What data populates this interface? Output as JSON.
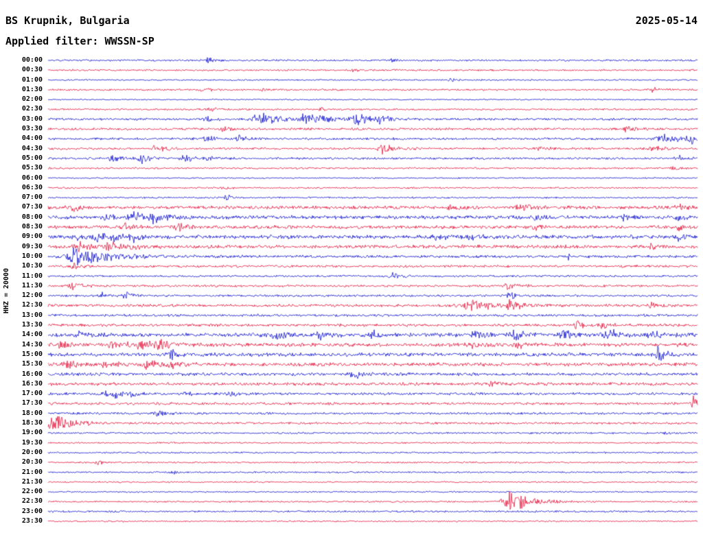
{
  "header": {
    "station": "BS Krupnik, Bulgaria",
    "date": "2025-05-14",
    "filter_label": "Applied filter: WWSSN-SP"
  },
  "axis": {
    "left_label": "HHZ = 20000"
  },
  "colors": {
    "blue": "#0e10cf",
    "red": "#e41239",
    "background": "#ffffff",
    "text": "#000000"
  },
  "chart_data": {
    "type": "line",
    "subtype": "seismogram-helicorder",
    "title": "BS Krupnik, Bulgaria",
    "date": "2025-05-14",
    "filter": "WWSSN-SP",
    "channel_scale_label": "HHZ = 20000",
    "minutes_per_row": 30,
    "start_time": "00:00",
    "end_time": "23:30",
    "legend": "none",
    "grid": "off",
    "events_format": "[position_fraction_along_row, peak_amplitude_px, decay_width_px]",
    "rows": [
      {
        "t": "00:00",
        "c": "blue",
        "n": 1.2,
        "e": [
          [
            0.246,
            6,
            6
          ],
          [
            0.53,
            2.5,
            8
          ]
        ]
      },
      {
        "t": "00:30",
        "c": "red",
        "n": 1.2,
        "e": [
          [
            0.47,
            2.5,
            8
          ]
        ]
      },
      {
        "t": "01:00",
        "c": "blue",
        "n": 1.0,
        "e": [
          [
            0.62,
            2,
            8
          ]
        ]
      },
      {
        "t": "01:30",
        "c": "red",
        "n": 1.2,
        "e": [
          [
            0.24,
            3,
            8
          ],
          [
            0.33,
            2.5,
            8
          ],
          [
            0.93,
            3.5,
            10
          ]
        ]
      },
      {
        "t": "02:00",
        "c": "blue",
        "n": 0.9,
        "e": []
      },
      {
        "t": "02:30",
        "c": "red",
        "n": 1.2,
        "e": [
          [
            0.25,
            3,
            10
          ],
          [
            0.42,
            2.5,
            8
          ]
        ]
      },
      {
        "t": "03:00",
        "c": "blue",
        "n": 1.5,
        "e": [
          [
            0.245,
            4,
            8
          ],
          [
            0.33,
            8,
            28
          ],
          [
            0.4,
            7,
            26
          ],
          [
            0.47,
            8,
            18
          ],
          [
            0.51,
            6,
            12
          ]
        ]
      },
      {
        "t": "03:30",
        "c": "red",
        "n": 1.6,
        "e": [
          [
            0.27,
            3,
            10
          ],
          [
            0.89,
            4,
            10
          ]
        ]
      },
      {
        "t": "04:00",
        "c": "blue",
        "n": 1.5,
        "e": [
          [
            0.245,
            4,
            10
          ],
          [
            0.295,
            5,
            10
          ],
          [
            0.95,
            5,
            24
          ],
          [
            0.99,
            5,
            12
          ]
        ]
      },
      {
        "t": "04:30",
        "c": "red",
        "n": 1.5,
        "e": [
          [
            0.165,
            4,
            14
          ],
          [
            0.515,
            7,
            14
          ],
          [
            0.76,
            3,
            10
          ],
          [
            0.93,
            4,
            12
          ]
        ]
      },
      {
        "t": "05:00",
        "c": "blue",
        "n": 1.5,
        "e": [
          [
            0.1,
            5,
            12
          ],
          [
            0.145,
            6,
            10
          ],
          [
            0.21,
            5,
            10
          ],
          [
            0.245,
            4,
            10
          ],
          [
            0.97,
            4,
            10
          ]
        ]
      },
      {
        "t": "05:30",
        "c": "red",
        "n": 1.2,
        "e": [
          [
            0.965,
            4,
            8
          ]
        ]
      },
      {
        "t": "06:00",
        "c": "blue",
        "n": 0.9,
        "e": []
      },
      {
        "t": "06:30",
        "c": "red",
        "n": 1.1,
        "e": [
          [
            0.27,
            3,
            8
          ]
        ]
      },
      {
        "t": "07:00",
        "c": "blue",
        "n": 1.1,
        "e": [
          [
            0.275,
            6,
            5
          ]
        ]
      },
      {
        "t": "07:30",
        "c": "red",
        "n": 2.2,
        "e": [
          [
            0.04,
            4,
            10
          ],
          [
            0.62,
            4,
            12
          ],
          [
            0.725,
            6,
            10
          ],
          [
            0.97,
            4,
            10
          ]
        ]
      },
      {
        "t": "08:00",
        "c": "blue",
        "n": 2.4,
        "e": [
          [
            0.09,
            5,
            10
          ],
          [
            0.13,
            7,
            12
          ],
          [
            0.165,
            8,
            14
          ],
          [
            0.75,
            4,
            10
          ],
          [
            0.89,
            5,
            10
          ],
          [
            0.97,
            4,
            8
          ]
        ]
      },
      {
        "t": "08:30",
        "c": "red",
        "n": 2.2,
        "e": [
          [
            0.12,
            5,
            12
          ],
          [
            0.2,
            5,
            12
          ],
          [
            0.75,
            4,
            10
          ],
          [
            0.97,
            4,
            8
          ]
        ]
      },
      {
        "t": "09:00",
        "c": "blue",
        "n": 2.4,
        "e": [
          [
            0.04,
            5,
            10
          ],
          [
            0.075,
            7,
            12
          ],
          [
            0.1,
            8,
            12
          ],
          [
            0.13,
            6,
            10
          ],
          [
            0.6,
            4,
            10
          ],
          [
            0.65,
            5,
            10
          ],
          [
            0.97,
            4,
            8
          ]
        ]
      },
      {
        "t": "09:30",
        "c": "red",
        "n": 2.3,
        "e": [
          [
            0.045,
            9,
            10
          ],
          [
            0.095,
            6,
            10
          ],
          [
            0.13,
            5,
            10
          ],
          [
            0.93,
            4,
            8
          ]
        ]
      },
      {
        "t": "10:00",
        "c": "blue",
        "n": 1.8,
        "e": [
          [
            0.048,
            13,
            40
          ],
          [
            0.8,
            6,
            6
          ]
        ]
      },
      {
        "t": "10:30",
        "c": "red",
        "n": 1.6,
        "e": [
          [
            0.04,
            3,
            10
          ]
        ]
      },
      {
        "t": "11:00",
        "c": "blue",
        "n": 1.4,
        "e": [
          [
            0.53,
            5,
            10
          ]
        ]
      },
      {
        "t": "11:30",
        "c": "red",
        "n": 1.5,
        "e": [
          [
            0.035,
            5,
            12
          ],
          [
            0.71,
            5,
            12
          ]
        ]
      },
      {
        "t": "12:00",
        "c": "blue",
        "n": 1.4,
        "e": [
          [
            0.085,
            4,
            10
          ],
          [
            0.12,
            4,
            12
          ],
          [
            0.71,
            5,
            10
          ]
        ]
      },
      {
        "t": "12:30",
        "c": "red",
        "n": 1.8,
        "e": [
          [
            0.655,
            7,
            26
          ],
          [
            0.71,
            6,
            14
          ],
          [
            0.93,
            3,
            10
          ]
        ]
      },
      {
        "t": "13:00",
        "c": "blue",
        "n": 1.6,
        "e": []
      },
      {
        "t": "13:30",
        "c": "red",
        "n": 1.8,
        "e": [
          [
            0.815,
            11,
            6
          ],
          [
            0.855,
            5,
            10
          ]
        ]
      },
      {
        "t": "14:00",
        "c": "blue",
        "n": 2.6,
        "e": [
          [
            0.05,
            4,
            10
          ],
          [
            0.35,
            6,
            16
          ],
          [
            0.42,
            5,
            12
          ],
          [
            0.5,
            5,
            10
          ],
          [
            0.66,
            6,
            12
          ],
          [
            0.72,
            7,
            12
          ],
          [
            0.795,
            8,
            14
          ],
          [
            0.865,
            7,
            14
          ],
          [
            0.93,
            5,
            12
          ]
        ]
      },
      {
        "t": "14:30",
        "c": "red",
        "n": 2.4,
        "e": [
          [
            0.02,
            5,
            10
          ],
          [
            0.1,
            7,
            14
          ],
          [
            0.14,
            6,
            12
          ],
          [
            0.17,
            7,
            14
          ],
          [
            0.65,
            4,
            10
          ],
          [
            0.72,
            5,
            10
          ]
        ]
      },
      {
        "t": "15:00",
        "c": "blue",
        "n": 2.4,
        "e": [
          [
            0.19,
            9,
            6
          ],
          [
            0.94,
            15,
            7
          ]
        ]
      },
      {
        "t": "15:30",
        "c": "red",
        "n": 2.4,
        "e": [
          [
            0.03,
            5,
            10
          ],
          [
            0.09,
            5,
            10
          ],
          [
            0.15,
            7,
            12
          ],
          [
            0.185,
            6,
            10
          ]
        ]
      },
      {
        "t": "16:00",
        "c": "blue",
        "n": 2.0,
        "e": [
          [
            0.475,
            6,
            14
          ]
        ]
      },
      {
        "t": "16:30",
        "c": "red",
        "n": 2.0,
        "e": [
          [
            0.68,
            4,
            10
          ]
        ]
      },
      {
        "t": "17:00",
        "c": "blue",
        "n": 1.7,
        "e": [
          [
            0.085,
            4,
            8
          ],
          [
            0.105,
            5,
            8
          ],
          [
            0.13,
            4,
            8
          ],
          [
            0.21,
            4,
            8
          ],
          [
            0.28,
            5,
            8
          ]
        ]
      },
      {
        "t": "17:30",
        "c": "red",
        "n": 1.7,
        "e": [
          [
            0.995,
            9,
            8
          ]
        ]
      },
      {
        "t": "18:00",
        "c": "blue",
        "n": 1.5,
        "e": [
          [
            0.17,
            5,
            10
          ]
        ]
      },
      {
        "t": "18:30",
        "c": "red",
        "n": 1.4,
        "e": [
          [
            0.006,
            11,
            30
          ]
        ]
      },
      {
        "t": "19:00",
        "c": "blue",
        "n": 1.2,
        "e": [
          [
            0.95,
            3,
            6
          ]
        ]
      },
      {
        "t": "19:30",
        "c": "red",
        "n": 1.1,
        "e": []
      },
      {
        "t": "20:00",
        "c": "blue",
        "n": 1.1,
        "e": []
      },
      {
        "t": "20:30",
        "c": "red",
        "n": 1.1,
        "e": [
          [
            0.075,
            6,
            6
          ]
        ]
      },
      {
        "t": "21:00",
        "c": "blue",
        "n": 1.1,
        "e": [
          [
            0.19,
            3,
            8
          ]
        ]
      },
      {
        "t": "21:30",
        "c": "red",
        "n": 1.0,
        "e": []
      },
      {
        "t": "22:00",
        "c": "blue",
        "n": 1.0,
        "e": []
      },
      {
        "t": "22:30",
        "c": "red",
        "n": 1.1,
        "e": [
          [
            0.715,
            13,
            26
          ]
        ]
      },
      {
        "t": "23:00",
        "c": "blue",
        "n": 1.3,
        "e": []
      },
      {
        "t": "23:30",
        "c": "red",
        "n": 1.0,
        "e": []
      }
    ]
  }
}
